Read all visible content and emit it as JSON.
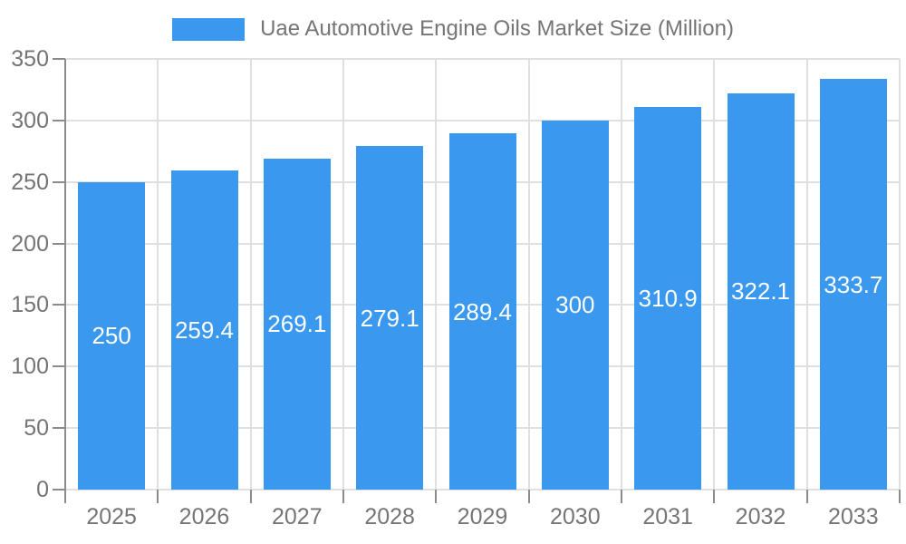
{
  "chart_data": {
    "type": "bar",
    "title": "Uae Automotive Engine Oils Market Size (Million)",
    "categories": [
      "2025",
      "2026",
      "2027",
      "2028",
      "2029",
      "2030",
      "2031",
      "2032",
      "2033"
    ],
    "values": [
      250,
      259.4,
      269.1,
      279.1,
      289.4,
      300,
      310.9,
      322.1,
      333.7
    ],
    "value_labels": [
      "250",
      "259.4",
      "269.1",
      "279.1",
      "289.4",
      "300",
      "310.9",
      "322.1",
      "333.7"
    ],
    "xlabel": "",
    "ylabel": "",
    "ylim": [
      0,
      350
    ],
    "yticks": [
      0,
      50,
      100,
      150,
      200,
      250,
      300,
      350
    ],
    "grid": true,
    "legend_position": "top",
    "colors": {
      "bar": "#3A99EE",
      "grid": "#e0e0e0",
      "axis": "#8c8c8c",
      "axis_text": "#757575",
      "value_label": "#ffffff"
    }
  }
}
